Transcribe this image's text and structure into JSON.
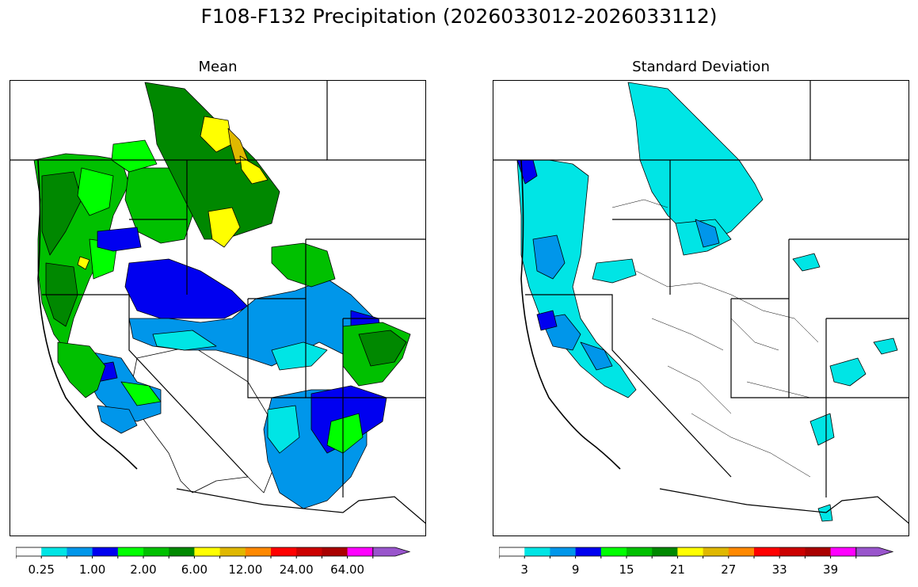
{
  "title": "F108-F132 Precipitation (2026033012-2026033112)",
  "panels": [
    {
      "title": "Mean",
      "colorbar": {
        "colors": [
          "#ffffff",
          "#00e5e5",
          "#0096ea",
          "#0000f0",
          "#00ff00",
          "#00c000",
          "#008800",
          "#ffff00",
          "#e0b800",
          "#ff8800",
          "#ff0000",
          "#cc0000",
          "#aa0000",
          "#ff00ff",
          "#9955cc"
        ],
        "tick_labels": [
          "0.25",
          "1.00",
          "2.00",
          "6.00",
          "12.00",
          "24.00",
          "64.00"
        ]
      }
    },
    {
      "title": "Standard Deviation",
      "colorbar": {
        "colors": [
          "#ffffff",
          "#00e5e5",
          "#0096ea",
          "#0000f0",
          "#00ff00",
          "#00c000",
          "#008800",
          "#ffff00",
          "#e0b800",
          "#ff8800",
          "#ff0000",
          "#cc0000",
          "#aa0000",
          "#ff00ff",
          "#9955cc"
        ],
        "tick_labels": [
          "3",
          "9",
          "15",
          "21",
          "27",
          "33",
          "39"
        ]
      }
    }
  ]
}
